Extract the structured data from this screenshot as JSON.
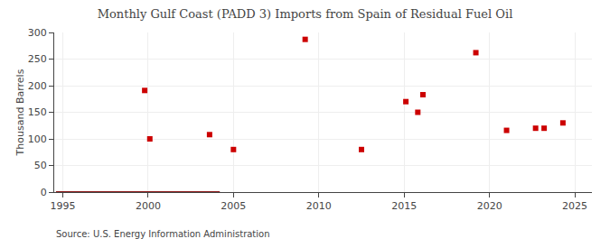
{
  "chart_data": {
    "type": "scatter",
    "title": "Monthly Gulf Coast (PADD 3) Imports from Spain of Residual Fuel Oil",
    "ylabel": "Thousand Barrels",
    "annotations": [
      "Source: U.S. Energy Information Administration"
    ],
    "xlim": [
      1994.5,
      2026
    ],
    "ylim": [
      0,
      300
    ],
    "xticks": [
      1995,
      2000,
      2005,
      2010,
      2015,
      2020,
      2025
    ],
    "yticks": [
      0,
      50,
      100,
      150,
      200,
      250,
      300
    ],
    "grid": true,
    "series": [
      {
        "type": "line",
        "color": "#8b1a1a",
        "line_style": "solid",
        "x": [
          1994.6,
          2004.2
        ],
        "values": [
          0,
          0
        ]
      },
      {
        "type": "scatter",
        "color": "#cc0000",
        "marker": "square",
        "x": [
          1999.8,
          2000.1,
          2003.6,
          2005.0,
          2009.2,
          2012.5,
          2015.1,
          2015.8,
          2016.1,
          2019.2,
          2021.0,
          2022.7,
          2023.2,
          2024.3
        ],
        "values": [
          191,
          100,
          108,
          80,
          287,
          80,
          170,
          150,
          183,
          262,
          116,
          120,
          120,
          130
        ]
      }
    ]
  }
}
